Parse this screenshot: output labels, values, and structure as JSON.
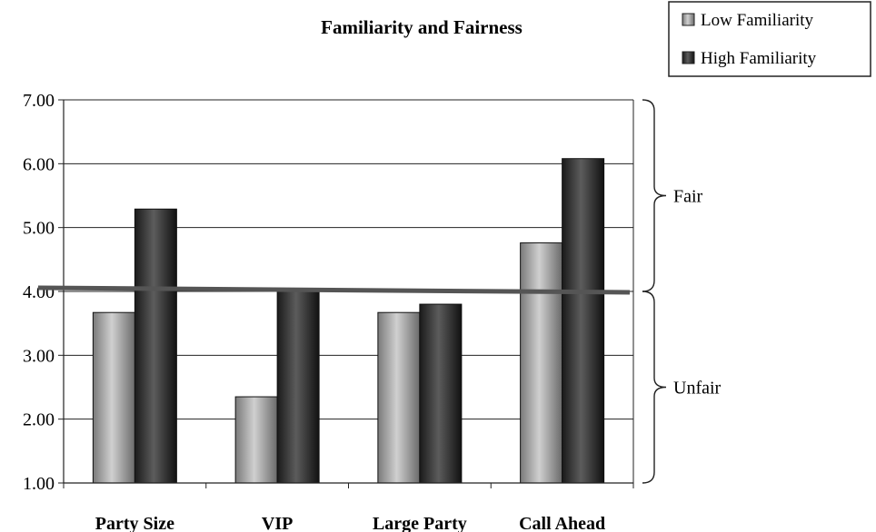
{
  "chart_data": {
    "type": "bar",
    "title": "Familiarity and Fairness",
    "categories": [
      "Party Size",
      "VIP",
      "Large Party",
      "Call Ahead"
    ],
    "series": [
      {
        "name": "Low Familiarity",
        "values": [
          3.67,
          2.35,
          3.67,
          4.76
        ],
        "color": "#9a9a9a"
      },
      {
        "name": "High Familiarity",
        "values": [
          5.29,
          4.02,
          3.8,
          6.08
        ],
        "color": "#2e2e2e"
      }
    ],
    "ylim": [
      1.0,
      7.0
    ],
    "yticks": [
      "1.00",
      "2.00",
      "3.00",
      "4.00",
      "5.00",
      "6.00",
      "7.00"
    ],
    "grid": true,
    "legend": "top-right",
    "reference_line": {
      "value": 4.0,
      "color": "#555555"
    },
    "regions": [
      {
        "label": "Fair",
        "from": 4.0,
        "to": 7.0
      },
      {
        "label": "Unfair",
        "from": 1.0,
        "to": 4.0
      }
    ]
  }
}
